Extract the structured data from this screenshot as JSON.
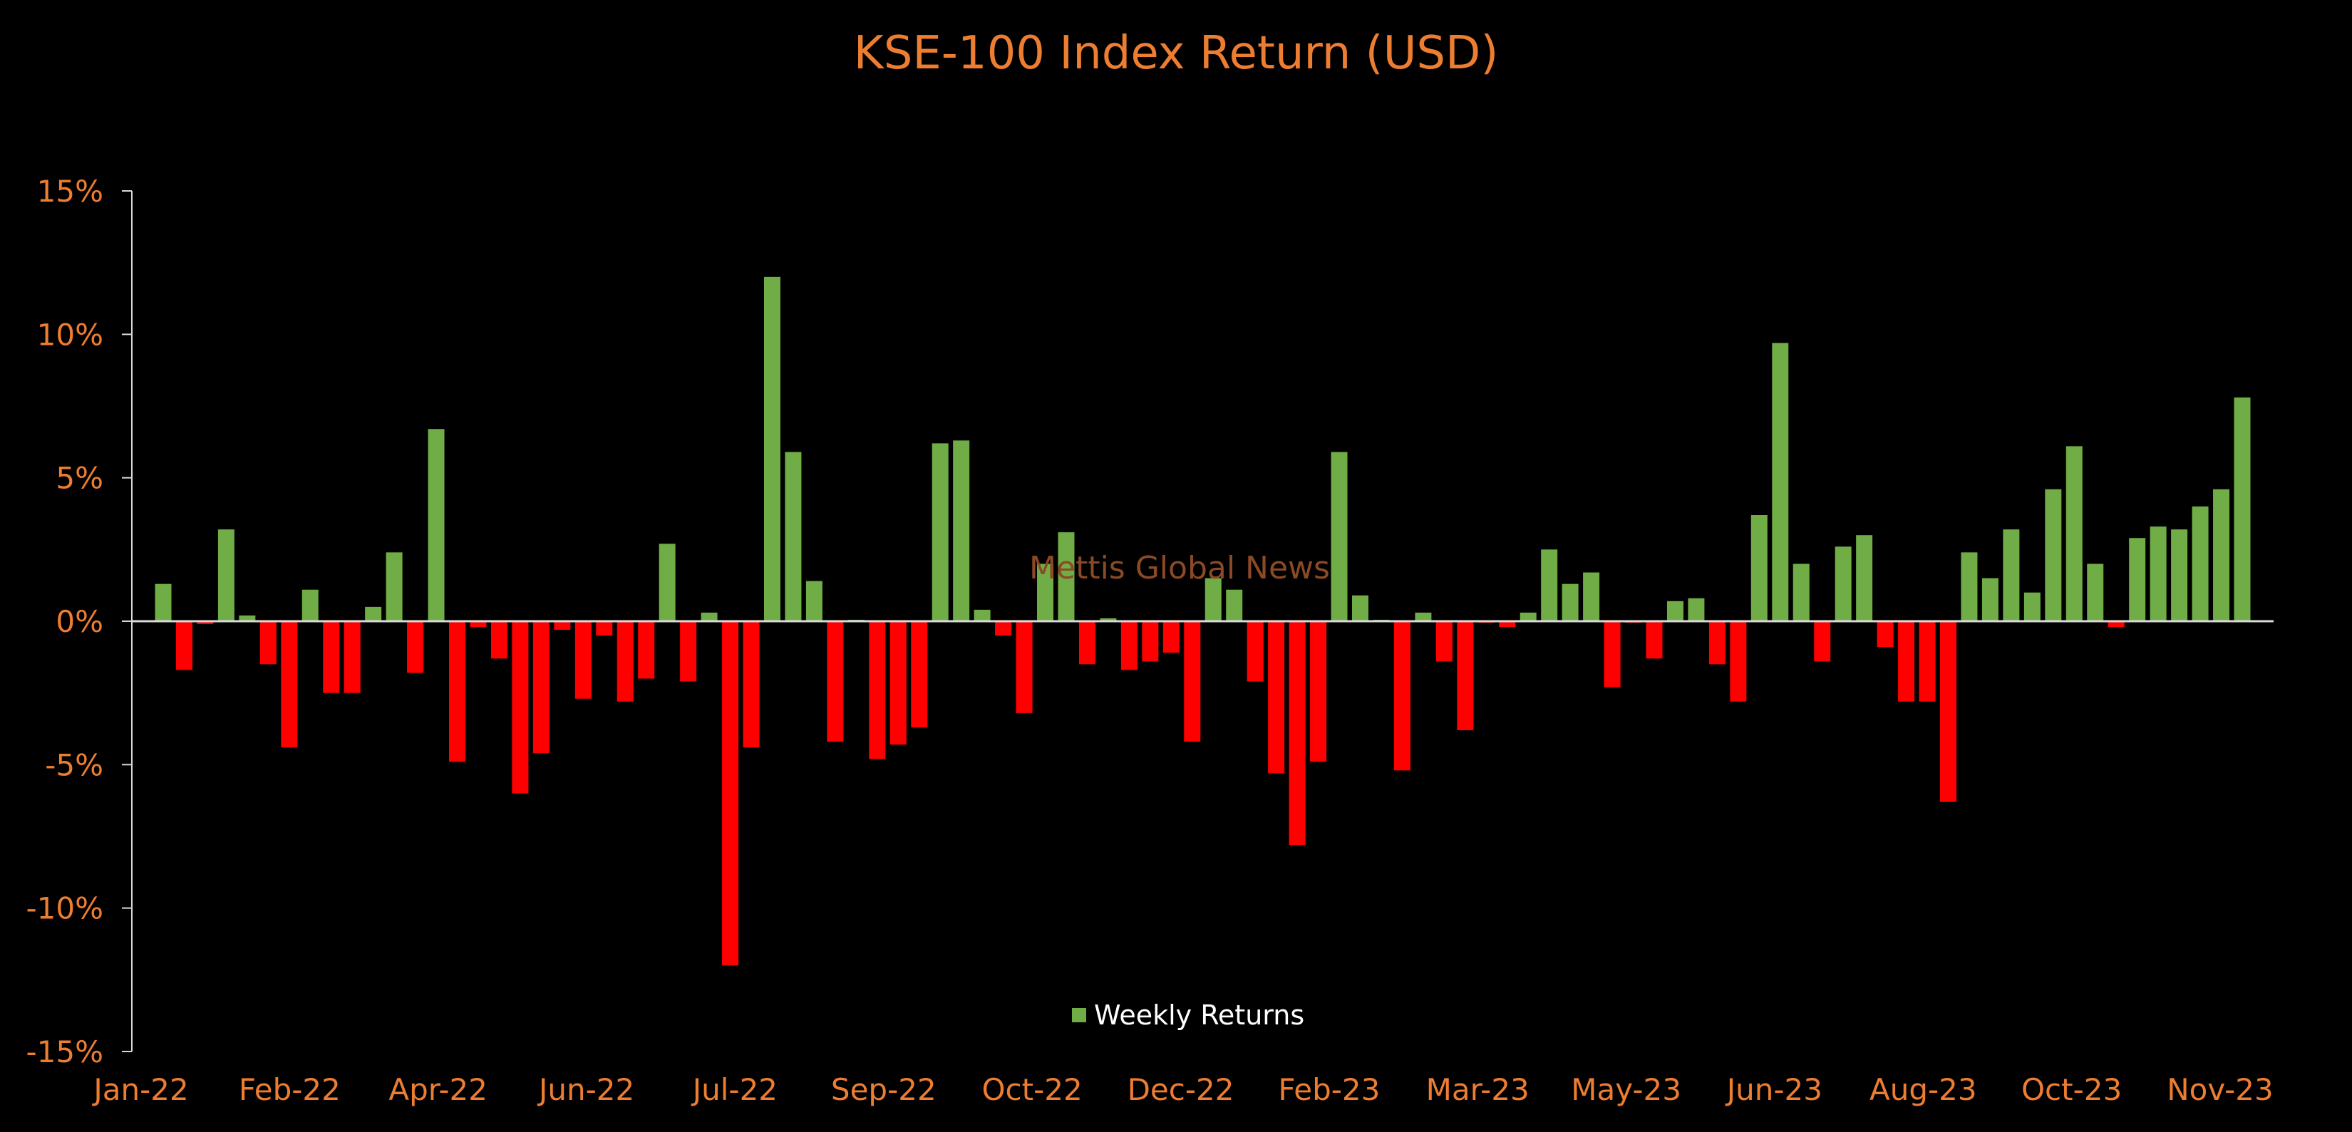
{
  "chart_data": {
    "type": "bar",
    "title": "KSE-100 Index Return (USD)",
    "xlabel": "",
    "ylabel": "",
    "ylim": [
      -15,
      15
    ],
    "y_ticks": [
      15,
      10,
      5,
      0,
      -5,
      -10,
      -15
    ],
    "y_tick_labels": [
      "15%",
      "10%",
      "5%",
      "0%",
      "-5%",
      "-10%",
      "-15%"
    ],
    "x_tick_labels": [
      "Jan-22",
      "Feb-22",
      "Apr-22",
      "Jun-22",
      "Jul-22",
      "Sep-22",
      "Oct-22",
      "Dec-22",
      "Feb-23",
      "Mar-23",
      "May-23",
      "Jun-23",
      "Aug-23",
      "Oct-23",
      "Nov-23"
    ],
    "legend_position": "bottom-center",
    "grid": false,
    "series": [
      {
        "name": "Weekly Returns",
        "values": [
          1.3,
          -1.7,
          -0.1,
          3.2,
          0.2,
          -1.5,
          -4.4,
          1.1,
          -2.5,
          -2.5,
          0.5,
          2.4,
          -1.8,
          6.7,
          -4.9,
          -0.2,
          -1.3,
          -6.0,
          -4.6,
          -0.3,
          -2.7,
          -0.5,
          -2.8,
          -2.0,
          2.7,
          -2.1,
          0.3,
          -12.0,
          -4.4,
          12.0,
          5.9,
          1.4,
          -4.2,
          0.05,
          -4.8,
          -4.3,
          -3.7,
          6.2,
          6.3,
          0.4,
          -0.5,
          -3.2,
          2.0,
          3.1,
          -1.5,
          0.1,
          -1.7,
          -1.4,
          -1.1,
          -4.2,
          1.5,
          1.1,
          -2.1,
          -5.3,
          -7.8,
          -4.9,
          5.9,
          0.9,
          0.05,
          -5.2,
          0.3,
          -1.4,
          -3.8,
          -0.05,
          -0.2,
          0.3,
          2.5,
          1.3,
          1.7,
          -2.3,
          -0.05,
          -1.3,
          0.7,
          0.8,
          -1.5,
          -2.8,
          3.7,
          9.7,
          2.0,
          -1.4,
          2.6,
          3.0,
          -0.9,
          -2.8,
          -2.8,
          -6.3,
          2.4,
          1.5,
          3.2,
          1.0,
          4.6,
          6.1,
          2.0,
          -0.2,
          2.9,
          3.3,
          3.2,
          4.0,
          4.6,
          7.8
        ]
      }
    ]
  },
  "watermark": "Mettis Global News",
  "colors": {
    "positive": "#70AD47",
    "negative": "#FF0000",
    "text_accent": "#ED7D31",
    "axis": "#D9D9D9",
    "legend_text": "#FFFFFF",
    "watermark": "#8B4A26",
    "background": "#000000"
  }
}
